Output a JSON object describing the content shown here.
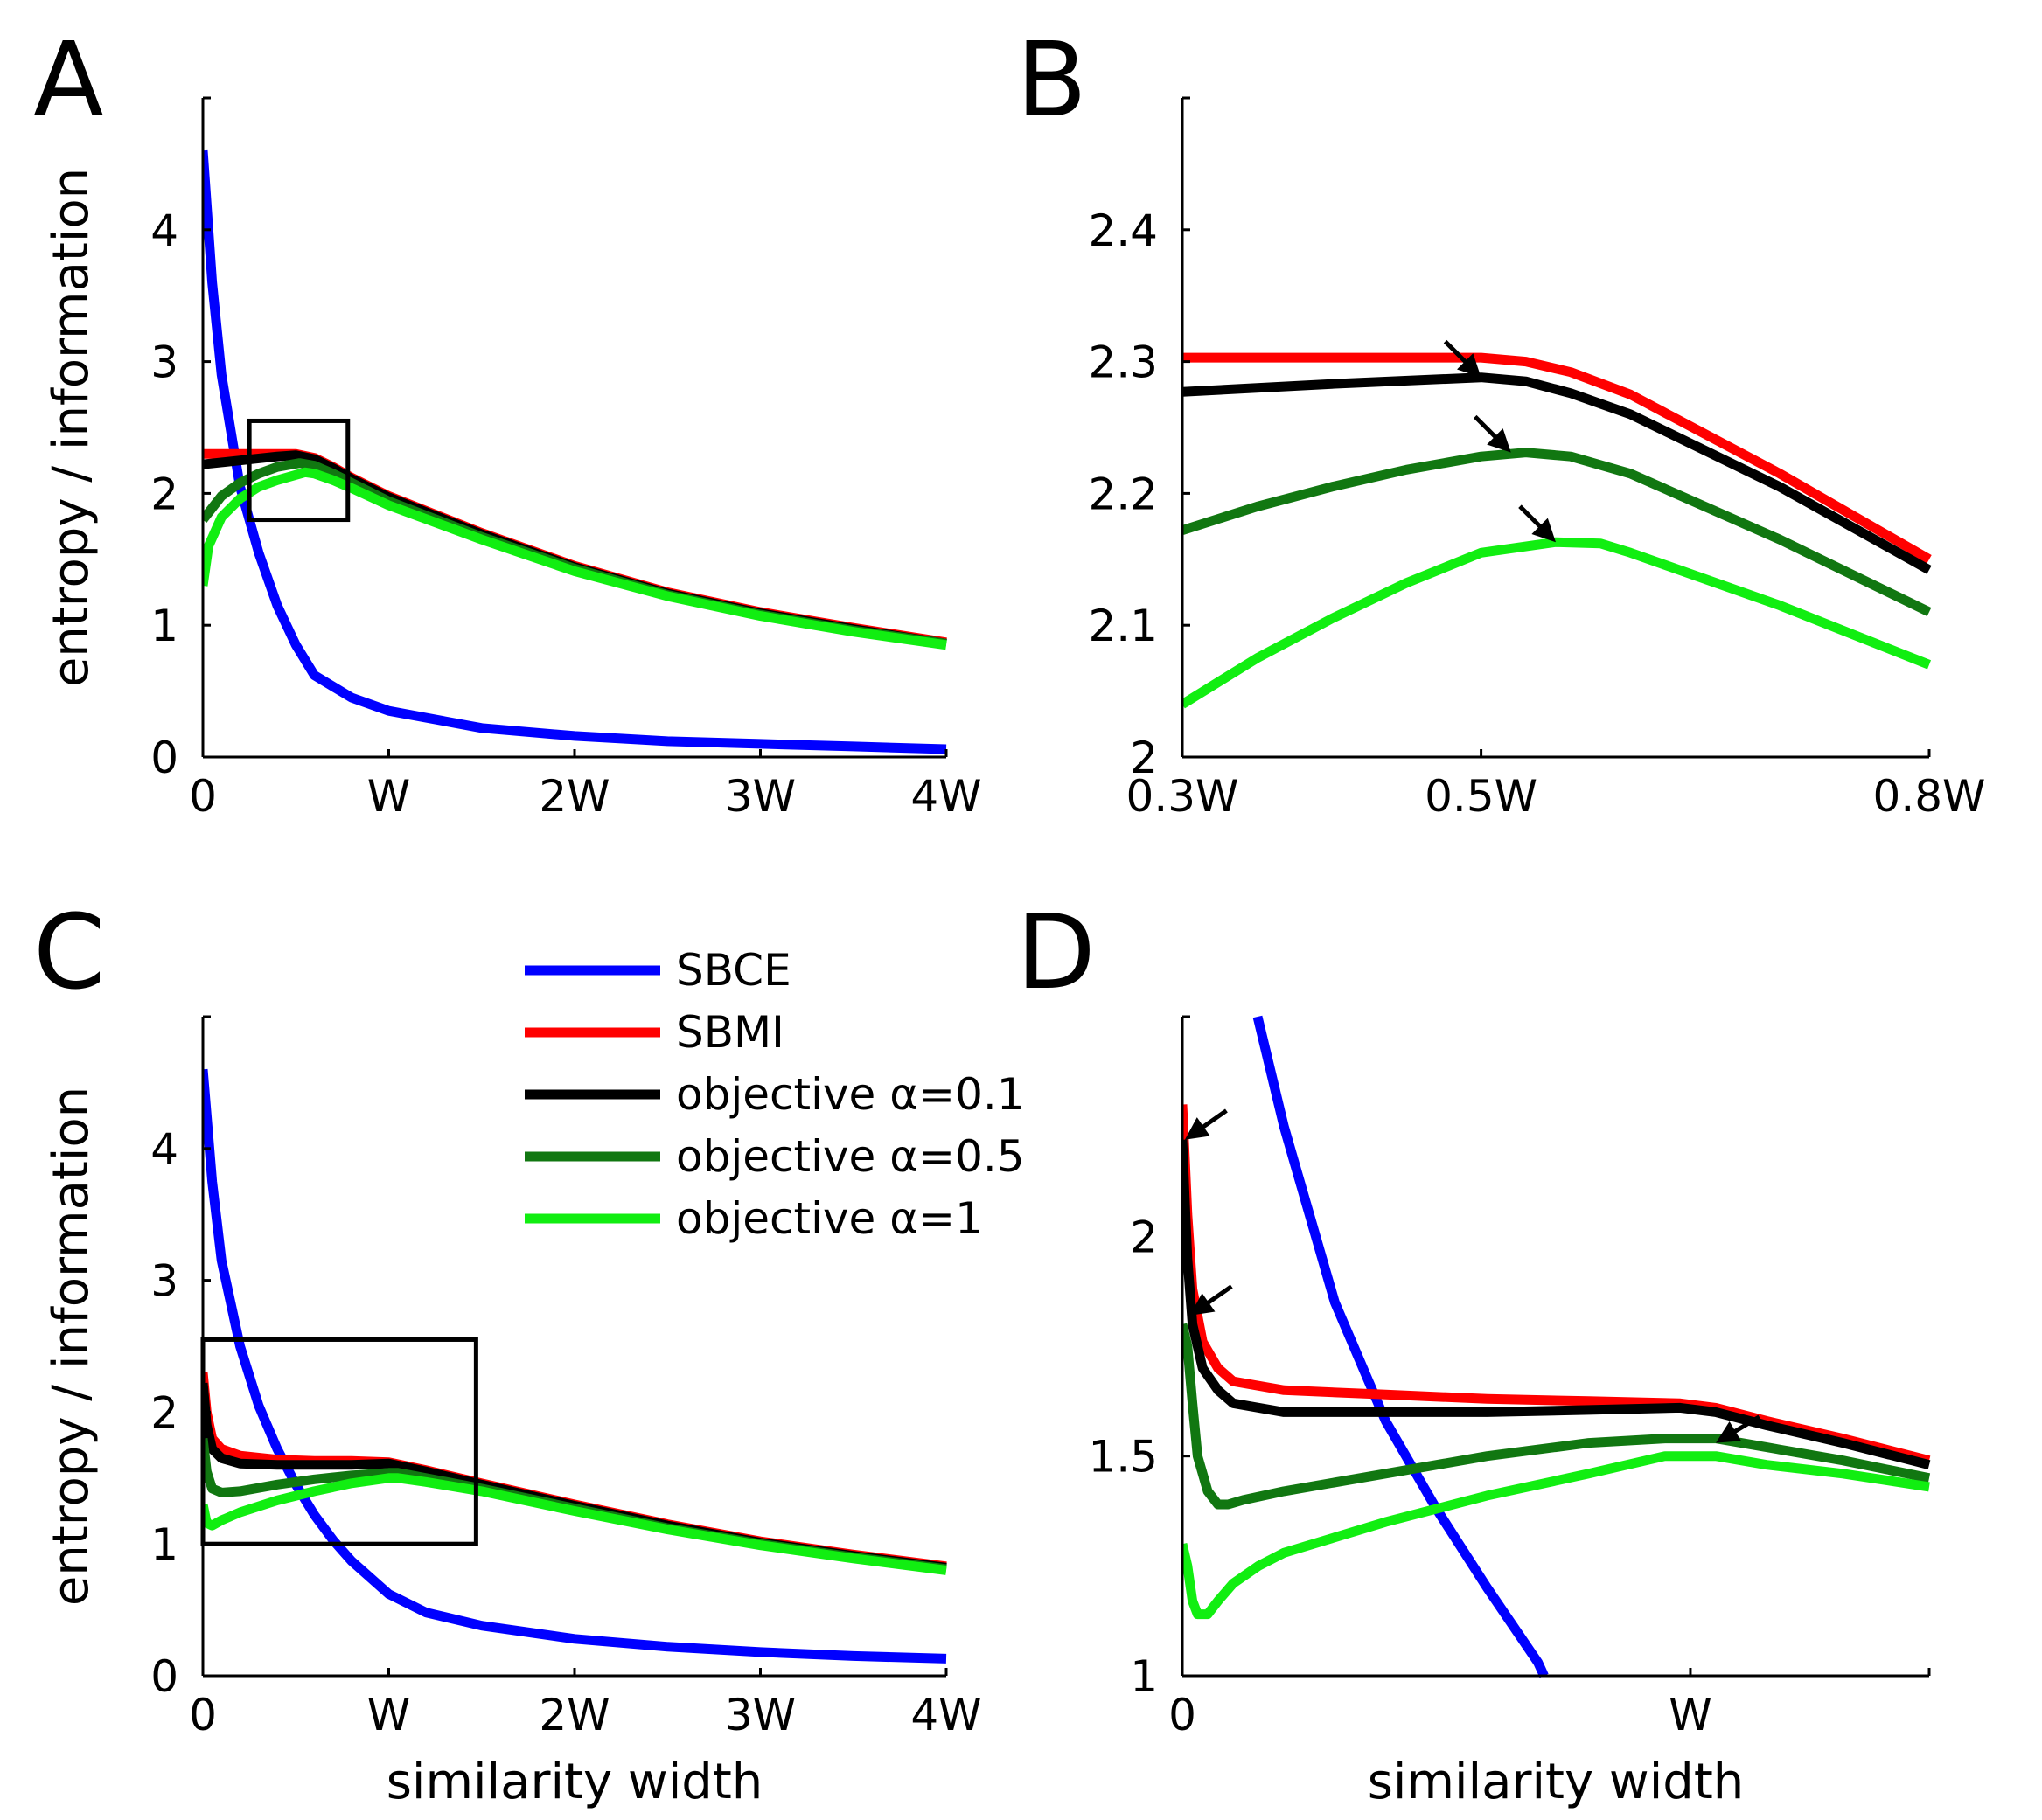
{
  "chart_data": [
    {
      "panel": "A",
      "type": "line",
      "xlabel": "",
      "ylabel": "entropy / information",
      "xlim": [
        0,
        4
      ],
      "ylim": [
        0,
        5
      ],
      "xticks": [
        0,
        1,
        2,
        3,
        4
      ],
      "xtick_labels": [
        "0",
        "W",
        "2W",
        "3W",
        "4W"
      ],
      "yticks": [
        0,
        1,
        2,
        3,
        4
      ],
      "ytick_labels": [
        "0",
        "1",
        "2",
        "3",
        "4"
      ],
      "grid": false,
      "zoom_box": {
        "x": [
          0.25,
          0.78
        ],
        "y": [
          1.8,
          2.55
        ]
      },
      "series": [
        {
          "name": "SBCE",
          "color": "#0000ff",
          "x": [
            0,
            0.05,
            0.1,
            0.2,
            0.3,
            0.4,
            0.5,
            0.6,
            0.8,
            1.0,
            1.5,
            2.0,
            2.5,
            3.0,
            3.5,
            4.0
          ],
          "y": [
            4.6,
            3.6,
            2.9,
            2.05,
            1.55,
            1.15,
            0.85,
            0.62,
            0.45,
            0.35,
            0.22,
            0.16,
            0.12,
            0.1,
            0.08,
            0.06
          ]
        },
        {
          "name": "SBMI",
          "color": "#ff0000",
          "x": [
            0,
            0.2,
            0.4,
            0.5,
            0.6,
            0.7,
            0.8,
            1.0,
            1.5,
            2.0,
            2.5,
            3.0,
            3.5,
            4.0
          ],
          "y": [
            2.3,
            2.3,
            2.3,
            2.3,
            2.27,
            2.2,
            2.12,
            1.98,
            1.7,
            1.45,
            1.25,
            1.1,
            0.98,
            0.87
          ]
        },
        {
          "name": "objective α=0.1",
          "color": "#000000",
          "x": [
            0,
            0.2,
            0.4,
            0.5,
            0.6,
            0.7,
            0.8,
            1.0,
            1.5,
            2.0,
            2.5,
            3.0,
            3.5,
            4.0
          ],
          "y": [
            2.22,
            2.25,
            2.28,
            2.29,
            2.26,
            2.19,
            2.11,
            1.97,
            1.69,
            1.44,
            1.24,
            1.09,
            0.97,
            0.86
          ]
        },
        {
          "name": "objective α=0.5",
          "color": "#117711",
          "x": [
            0,
            0.1,
            0.2,
            0.3,
            0.4,
            0.52,
            0.6,
            0.7,
            0.8,
            1.0,
            1.5,
            2.0,
            2.5,
            3.0,
            3.5,
            4.0
          ],
          "y": [
            1.8,
            1.98,
            2.08,
            2.15,
            2.2,
            2.23,
            2.21,
            2.15,
            2.08,
            1.94,
            1.67,
            1.43,
            1.23,
            1.08,
            0.96,
            0.86
          ]
        },
        {
          "name": "objective α=1",
          "color": "#11ee11",
          "x": [
            0,
            0.03,
            0.1,
            0.2,
            0.3,
            0.4,
            0.55,
            0.6,
            0.7,
            0.8,
            1.0,
            1.5,
            2.0,
            2.5,
            3.0,
            3.5,
            4.0
          ],
          "y": [
            1.3,
            1.6,
            1.82,
            1.96,
            2.05,
            2.1,
            2.16,
            2.15,
            2.1,
            2.04,
            1.91,
            1.65,
            1.41,
            1.22,
            1.07,
            0.95,
            0.85
          ]
        }
      ]
    },
    {
      "panel": "B",
      "type": "line",
      "xlabel": "",
      "ylabel": "",
      "xlim": [
        0.3,
        0.8
      ],
      "ylim": [
        2.0,
        2.5
      ],
      "xticks": [
        0.3,
        0.5,
        0.8
      ],
      "xtick_labels": [
        "0.3W",
        "0.5W",
        "0.8W"
      ],
      "yticks": [
        2.0,
        2.1,
        2.2,
        2.3,
        2.4
      ],
      "ytick_labels": [
        "2",
        "2.1",
        "2.2",
        "2.3",
        "2.4"
      ],
      "grid": false,
      "series": [
        {
          "name": "SBMI",
          "color": "#ff0000",
          "x": [
            0.3,
            0.4,
            0.5,
            0.53,
            0.56,
            0.6,
            0.7,
            0.8
          ],
          "y": [
            2.303,
            2.303,
            2.303,
            2.3,
            2.292,
            2.275,
            2.215,
            2.15
          ]
        },
        {
          "name": "objective α=0.1",
          "color": "#000000",
          "x": [
            0.3,
            0.4,
            0.5,
            0.53,
            0.56,
            0.6,
            0.7,
            0.8
          ],
          "y": [
            2.277,
            2.283,
            2.288,
            2.285,
            2.276,
            2.26,
            2.205,
            2.142
          ]
        },
        {
          "name": "objective α=0.5",
          "color": "#117711",
          "x": [
            0.3,
            0.35,
            0.4,
            0.45,
            0.5,
            0.53,
            0.56,
            0.6,
            0.7,
            0.8
          ],
          "y": [
            2.172,
            2.19,
            2.205,
            2.218,
            2.228,
            2.231,
            2.228,
            2.215,
            2.165,
            2.11
          ]
        },
        {
          "name": "objective α=1",
          "color": "#11ee11",
          "x": [
            0.3,
            0.35,
            0.4,
            0.45,
            0.5,
            0.55,
            0.58,
            0.6,
            0.7,
            0.8
          ],
          "y": [
            2.04,
            2.075,
            2.105,
            2.132,
            2.155,
            2.163,
            2.162,
            2.155,
            2.115,
            2.07
          ]
        }
      ],
      "arrows": [
        {
          "x": 0.5,
          "y": 2.288
        },
        {
          "x": 0.52,
          "y": 2.231
        },
        {
          "x": 0.55,
          "y": 2.163
        }
      ]
    },
    {
      "panel": "C",
      "type": "line",
      "xlabel": "similarity width",
      "ylabel": "entropy / information",
      "xlim": [
        0,
        4
      ],
      "ylim": [
        0,
        5
      ],
      "xticks": [
        0,
        1,
        2,
        3,
        4
      ],
      "xtick_labels": [
        "0",
        "W",
        "2W",
        "3W",
        "4W"
      ],
      "yticks": [
        0,
        1,
        2,
        3,
        4
      ],
      "ytick_labels": [
        "0",
        "1",
        "2",
        "3",
        "4"
      ],
      "grid": false,
      "zoom_box": {
        "x": [
          0,
          1.47
        ],
        "y": [
          1.0,
          2.55
        ]
      },
      "series": [
        {
          "name": "SBCE",
          "color": "#0000ff",
          "x": [
            0,
            0.05,
            0.1,
            0.2,
            0.3,
            0.4,
            0.5,
            0.6,
            0.7,
            0.8,
            1.0,
            1.2,
            1.5,
            2.0,
            2.5,
            3.0,
            3.5,
            4.0
          ],
          "y": [
            4.6,
            3.75,
            3.15,
            2.5,
            2.05,
            1.72,
            1.45,
            1.22,
            1.03,
            0.87,
            0.62,
            0.48,
            0.38,
            0.28,
            0.22,
            0.18,
            0.15,
            0.13
          ]
        },
        {
          "name": "SBMI",
          "color": "#ff0000",
          "x": [
            0,
            0.02,
            0.05,
            0.1,
            0.2,
            0.4,
            0.6,
            0.8,
            1.0,
            1.2,
            1.5,
            2.0,
            2.5,
            3.0,
            3.5,
            4.0
          ],
          "y": [
            2.3,
            2.0,
            1.8,
            1.72,
            1.67,
            1.64,
            1.63,
            1.63,
            1.62,
            1.56,
            1.46,
            1.3,
            1.15,
            1.02,
            0.92,
            0.83
          ]
        },
        {
          "name": "objective α=0.1",
          "color": "#000000",
          "x": [
            0,
            0.02,
            0.05,
            0.1,
            0.2,
            0.4,
            0.6,
            0.8,
            1.0,
            1.2,
            1.5,
            2.0,
            2.5,
            3.0,
            3.5,
            4.0
          ],
          "y": [
            2.22,
            1.9,
            1.72,
            1.65,
            1.61,
            1.6,
            1.6,
            1.6,
            1.61,
            1.55,
            1.45,
            1.29,
            1.14,
            1.01,
            0.91,
            0.82
          ]
        },
        {
          "name": "objective α=0.5",
          "color": "#117711",
          "x": [
            0,
            0.02,
            0.05,
            0.1,
            0.2,
            0.4,
            0.6,
            0.8,
            1.0,
            1.05,
            1.2,
            1.5,
            2.0,
            2.5,
            3.0,
            3.5,
            4.0
          ],
          "y": [
            1.8,
            1.55,
            1.42,
            1.39,
            1.4,
            1.45,
            1.49,
            1.52,
            1.54,
            1.54,
            1.5,
            1.42,
            1.27,
            1.12,
            1.0,
            0.9,
            0.81
          ]
        },
        {
          "name": "objective α=1",
          "color": "#11ee11",
          "x": [
            0,
            0.02,
            0.05,
            0.1,
            0.2,
            0.4,
            0.6,
            0.8,
            1.0,
            1.05,
            1.2,
            1.5,
            2.0,
            2.5,
            3.0,
            3.5,
            4.0
          ],
          "y": [
            1.3,
            1.16,
            1.14,
            1.18,
            1.24,
            1.33,
            1.4,
            1.46,
            1.5,
            1.5,
            1.47,
            1.4,
            1.25,
            1.11,
            0.99,
            0.89,
            0.8
          ]
        }
      ]
    },
    {
      "panel": "D",
      "type": "line",
      "xlabel": "similarity width",
      "ylabel": "",
      "xlim": [
        0,
        1.47
      ],
      "ylim": [
        1.0,
        2.5
      ],
      "xticks": [
        0,
        1
      ],
      "xtick_labels": [
        "0",
        "W"
      ],
      "yticks": [
        1.0,
        1.5,
        2.0
      ],
      "ytick_labels": [
        "1",
        "1.5",
        "2"
      ],
      "grid": false,
      "series": [
        {
          "name": "SBCE",
          "color": "#0000ff",
          "x": [
            0.148,
            0.2,
            0.3,
            0.4,
            0.5,
            0.6,
            0.7,
            0.712
          ],
          "y": [
            2.5,
            2.25,
            1.85,
            1.58,
            1.38,
            1.2,
            1.03,
            1.0
          ]
        },
        {
          "name": "SBMI",
          "color": "#ff0000",
          "x": [
            0,
            0.005,
            0.01,
            0.02,
            0.04,
            0.07,
            0.1,
            0.2,
            0.4,
            0.6,
            0.8,
            0.98,
            1.05,
            1.15,
            1.3,
            1.47
          ],
          "y": [
            2.3,
            2.18,
            2.05,
            1.88,
            1.76,
            1.7,
            1.67,
            1.65,
            1.64,
            1.63,
            1.625,
            1.62,
            1.61,
            1.58,
            1.54,
            1.49
          ]
        },
        {
          "name": "objective α=0.1",
          "color": "#000000",
          "x": [
            0,
            0.005,
            0.01,
            0.02,
            0.04,
            0.07,
            0.1,
            0.2,
            0.4,
            0.6,
            0.8,
            0.98,
            1.05,
            1.15,
            1.3,
            1.47
          ],
          "y": [
            2.22,
            2.08,
            1.95,
            1.8,
            1.7,
            1.65,
            1.62,
            1.6,
            1.6,
            1.6,
            1.605,
            1.61,
            1.6,
            1.57,
            1.53,
            1.48
          ]
        },
        {
          "name": "objective α=0.5",
          "color": "#117711",
          "x": [
            0,
            0.01,
            0.02,
            0.03,
            0.05,
            0.07,
            0.09,
            0.12,
            0.2,
            0.4,
            0.6,
            0.8,
            0.95,
            1.05,
            1.15,
            1.3,
            1.47
          ],
          "y": [
            1.8,
            1.75,
            1.62,
            1.5,
            1.42,
            1.39,
            1.39,
            1.4,
            1.42,
            1.46,
            1.5,
            1.53,
            1.54,
            1.54,
            1.52,
            1.49,
            1.45
          ]
        },
        {
          "name": "objective α=1",
          "color": "#11ee11",
          "x": [
            0,
            0.01,
            0.02,
            0.03,
            0.05,
            0.07,
            0.1,
            0.15,
            0.2,
            0.4,
            0.6,
            0.8,
            0.95,
            1.05,
            1.15,
            1.3,
            1.47
          ],
          "y": [
            1.3,
            1.25,
            1.17,
            1.14,
            1.14,
            1.17,
            1.21,
            1.25,
            1.28,
            1.35,
            1.41,
            1.46,
            1.5,
            1.5,
            1.48,
            1.46,
            1.43
          ]
        }
      ],
      "arrows": [
        {
          "x": 0.005,
          "y": 2.22
        },
        {
          "x": 0.015,
          "y": 1.82
        },
        {
          "x": 1.05,
          "y": 1.53
        }
      ]
    }
  ],
  "panel_labels": [
    "A",
    "B",
    "C",
    "D"
  ],
  "legend": {
    "location": "panel C, upper right",
    "entries": [
      {
        "label": "SBCE",
        "color": "#0000ff"
      },
      {
        "label": "SBMI",
        "color": "#ff0000"
      },
      {
        "label": "objective α=0.1",
        "color": "#000000"
      },
      {
        "label": "objective α=0.5",
        "color": "#117711"
      },
      {
        "label": "objective α=1",
        "color": "#11ee11"
      }
    ]
  }
}
